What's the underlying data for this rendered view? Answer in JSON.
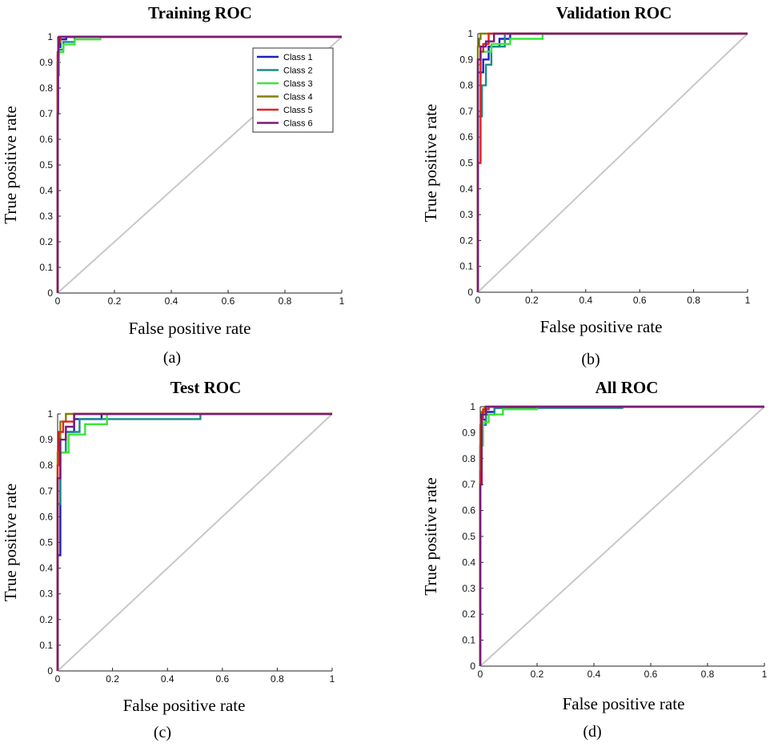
{
  "colors": {
    "class1": "#1f1fbf",
    "class2": "#1b8a8a",
    "class3": "#39e639",
    "class4": "#808000",
    "class5": "#e62020",
    "class6": "#7a1a7a",
    "diagonal": "#c8c8c8"
  },
  "chart_data": [
    {
      "type": "line",
      "panel": "a",
      "title": "Training ROC",
      "xlabel": "False positive rate",
      "ylabel": "True positive rate",
      "caption": "(a)",
      "xlim": [
        0,
        1
      ],
      "ylim": [
        0,
        1
      ],
      "xticks": [
        "0",
        "0.2",
        "0.4",
        "0.6",
        "0.8",
        "1"
      ],
      "yticks": [
        "0",
        "0.1",
        "0.2",
        "0.3",
        "0.4",
        "0.5",
        "0.6",
        "0.7",
        "0.8",
        "0.9",
        "1"
      ],
      "legend": {
        "position": "top-right",
        "entries": [
          "Class 1",
          "Class 2",
          "Class 3",
          "Class 4",
          "Class 5",
          "Class 6"
        ]
      },
      "series": [
        {
          "name": "Class 1",
          "x": [
            0,
            0,
            0.003,
            0.003,
            0.01,
            0.01,
            0.03,
            0.03,
            1
          ],
          "y": [
            0,
            0.9,
            0.9,
            0.96,
            0.96,
            0.99,
            0.99,
            1,
            1
          ]
        },
        {
          "name": "Class 2",
          "x": [
            0,
            0,
            0.005,
            0.005,
            0.02,
            0.02,
            0.06,
            0.06,
            1
          ],
          "y": [
            0,
            0.88,
            0.88,
            0.95,
            0.95,
            0.98,
            0.98,
            1,
            1
          ]
        },
        {
          "name": "Class 3",
          "x": [
            0,
            0,
            0.005,
            0.005,
            0.02,
            0.02,
            0.06,
            0.06,
            0.15,
            0.15,
            1
          ],
          "y": [
            0,
            0.85,
            0.85,
            0.94,
            0.94,
            0.97,
            0.97,
            0.99,
            0.99,
            1,
            1
          ]
        },
        {
          "name": "Class 4",
          "x": [
            0,
            0,
            0.003,
            0.003,
            0.01,
            0.01,
            1
          ],
          "y": [
            0,
            0.93,
            0.93,
            0.98,
            0.98,
            1,
            1
          ]
        },
        {
          "name": "Class 5",
          "x": [
            0,
            0,
            0.003,
            0.003,
            0.008,
            0.008,
            1
          ],
          "y": [
            0,
            0.94,
            0.94,
            0.99,
            0.99,
            1,
            1
          ]
        },
        {
          "name": "Class 6",
          "x": [
            0,
            0,
            0.002,
            0.002,
            0.005,
            0.005,
            1
          ],
          "y": [
            0,
            0.7,
            0.7,
            0.97,
            0.97,
            1,
            1
          ]
        },
        {
          "name": "diagonal",
          "x": [
            0,
            1
          ],
          "y": [
            0,
            1
          ]
        }
      ]
    },
    {
      "type": "line",
      "panel": "b",
      "title": "Validation ROC",
      "xlabel": "False positive rate",
      "ylabel": "True positive rate",
      "caption": "(b)",
      "xlim": [
        0,
        1
      ],
      "ylim": [
        0,
        1
      ],
      "xticks": [
        "0",
        "0.2",
        "0.4",
        "0.6",
        "0.8",
        "1"
      ],
      "yticks": [
        "0",
        "0.1",
        "0.2",
        "0.3",
        "0.4",
        "0.5",
        "0.6",
        "0.7",
        "0.8",
        "0.9",
        "1"
      ],
      "series": [
        {
          "name": "Class 1",
          "x": [
            0,
            0,
            0.02,
            0.02,
            0.04,
            0.04,
            0.08,
            0.08,
            0.12,
            0.12,
            1
          ],
          "y": [
            0,
            0.85,
            0.85,
            0.9,
            0.9,
            0.95,
            0.95,
            0.98,
            0.98,
            1,
            1
          ]
        },
        {
          "name": "Class 2",
          "x": [
            0,
            0,
            0.015,
            0.015,
            0.03,
            0.03,
            0.05,
            0.05,
            0.1,
            0.1,
            1
          ],
          "y": [
            0,
            0.68,
            0.68,
            0.8,
            0.8,
            0.88,
            0.88,
            0.95,
            0.95,
            1,
            1
          ]
        },
        {
          "name": "Class 3",
          "x": [
            0,
            0,
            0.01,
            0.01,
            0.05,
            0.05,
            0.12,
            0.12,
            0.24,
            0.24,
            1
          ],
          "y": [
            0,
            0.88,
            0.88,
            0.93,
            0.93,
            0.96,
            0.96,
            0.98,
            0.98,
            1,
            1
          ]
        },
        {
          "name": "Class 4",
          "x": [
            0,
            0,
            0.005,
            0.005,
            0.01,
            0.01,
            1
          ],
          "y": [
            0,
            0.95,
            0.95,
            0.98,
            0.98,
            1,
            1
          ]
        },
        {
          "name": "Class 5",
          "x": [
            0,
            0,
            0.01,
            0.01,
            0.02,
            0.02,
            0.04,
            0.04,
            1
          ],
          "y": [
            0,
            0.5,
            0.5,
            0.93,
            0.93,
            0.96,
            0.96,
            1,
            1
          ]
        },
        {
          "name": "Class 6",
          "x": [
            0,
            0,
            0.01,
            0.01,
            0.03,
            0.03,
            0.06,
            0.06,
            1
          ],
          "y": [
            0,
            0.9,
            0.9,
            0.95,
            0.95,
            0.97,
            0.97,
            1,
            1
          ]
        },
        {
          "name": "diagonal",
          "x": [
            0,
            1
          ],
          "y": [
            0,
            1
          ]
        }
      ]
    },
    {
      "type": "line",
      "panel": "c",
      "title": "Test ROC",
      "xlabel": "False positive rate",
      "ylabel": "True positive rate",
      "caption": "(c)",
      "xlim": [
        0,
        1
      ],
      "ylim": [
        0,
        1
      ],
      "xticks": [
        "0",
        "0.2",
        "0.4",
        "0.6",
        "0.8",
        "1"
      ],
      "yticks": [
        "0",
        "0.1",
        "0.2",
        "0.3",
        "0.4",
        "0.5",
        "0.6",
        "0.7",
        "0.8",
        "0.9",
        "1"
      ],
      "series": [
        {
          "name": "Class 1",
          "x": [
            0,
            0,
            0.01,
            0.01,
            0.03,
            0.03,
            0.06,
            0.06,
            0.16,
            0.16,
            1
          ],
          "y": [
            0,
            0.45,
            0.45,
            0.85,
            0.85,
            0.93,
            0.93,
            0.98,
            0.98,
            1,
            1
          ]
        },
        {
          "name": "Class 2",
          "x": [
            0,
            0,
            0.01,
            0.01,
            0.03,
            0.03,
            0.08,
            0.08,
            0.52,
            0.52,
            1
          ],
          "y": [
            0,
            0.65,
            0.65,
            0.85,
            0.85,
            0.93,
            0.93,
            0.98,
            0.98,
            1,
            1
          ]
        },
        {
          "name": "Class 3",
          "x": [
            0,
            0,
            0.01,
            0.01,
            0.04,
            0.04,
            0.1,
            0.1,
            0.18,
            0.18,
            1
          ],
          "y": [
            0,
            0.75,
            0.75,
            0.85,
            0.85,
            0.92,
            0.92,
            0.96,
            0.96,
            1,
            1
          ]
        },
        {
          "name": "Class 4",
          "x": [
            0,
            0,
            0.01,
            0.01,
            0.03,
            0.03,
            1
          ],
          "y": [
            0,
            0.85,
            0.85,
            0.97,
            0.97,
            1,
            1
          ]
        },
        {
          "name": "Class 5",
          "x": [
            0,
            0,
            0.005,
            0.005,
            0.02,
            0.02,
            0.06,
            0.06,
            1
          ],
          "y": [
            0,
            0.8,
            0.8,
            0.93,
            0.93,
            0.97,
            0.97,
            1,
            1
          ]
        },
        {
          "name": "Class 6",
          "x": [
            0,
            0,
            0.01,
            0.01,
            0.03,
            0.03,
            0.06,
            0.06,
            1
          ],
          "y": [
            0,
            0.75,
            0.75,
            0.9,
            0.9,
            0.95,
            0.95,
            1,
            1
          ]
        },
        {
          "name": "diagonal",
          "x": [
            0,
            1
          ],
          "y": [
            0,
            1
          ]
        }
      ]
    },
    {
      "type": "line",
      "panel": "d",
      "title": "All ROC",
      "xlabel": "False positive rate",
      "ylabel": "True positive rate",
      "caption": "(d)",
      "xlim": [
        0,
        1
      ],
      "ylim": [
        0,
        1
      ],
      "xticks": [
        "0",
        "0.2",
        "0.4",
        "0.6",
        "0.8",
        "1"
      ],
      "yticks": [
        "0",
        "0.1",
        "0.2",
        "0.3",
        "0.4",
        "0.5",
        "0.6",
        "0.7",
        "0.8",
        "0.9",
        "1"
      ],
      "series": [
        {
          "name": "Class 1",
          "x": [
            0,
            0,
            0.005,
            0.005,
            0.02,
            0.02,
            0.05,
            0.05,
            0.15,
            0.15,
            1
          ],
          "y": [
            0,
            0.85,
            0.85,
            0.95,
            0.95,
            0.98,
            0.98,
            0.995,
            0.995,
            1,
            1
          ]
        },
        {
          "name": "Class 2",
          "x": [
            0,
            0,
            0.005,
            0.005,
            0.02,
            0.02,
            0.05,
            0.05,
            0.5,
            0.5,
            1
          ],
          "y": [
            0,
            0.8,
            0.8,
            0.93,
            0.93,
            0.97,
            0.97,
            0.995,
            0.995,
            1,
            1
          ]
        },
        {
          "name": "Class 3",
          "x": [
            0,
            0,
            0.01,
            0.01,
            0.03,
            0.03,
            0.08,
            0.08,
            0.2,
            0.2,
            1
          ],
          "y": [
            0,
            0.85,
            0.85,
            0.94,
            0.94,
            0.97,
            0.97,
            0.99,
            0.99,
            1,
            1
          ]
        },
        {
          "name": "Class 4",
          "x": [
            0,
            0,
            0.005,
            0.005,
            0.015,
            0.015,
            1
          ],
          "y": [
            0,
            0.93,
            0.93,
            0.98,
            0.98,
            1,
            1
          ]
        },
        {
          "name": "Class 5",
          "x": [
            0,
            0,
            0.003,
            0.003,
            0.01,
            0.01,
            0.03,
            0.03,
            1
          ],
          "y": [
            0,
            0.75,
            0.75,
            0.95,
            0.95,
            0.99,
            0.99,
            1,
            1
          ]
        },
        {
          "name": "Class 6",
          "x": [
            0,
            0,
            0.005,
            0.005,
            0.02,
            0.02,
            1
          ],
          "y": [
            0,
            0.7,
            0.7,
            0.97,
            0.97,
            1,
            1
          ]
        },
        {
          "name": "diagonal",
          "x": [
            0,
            1
          ],
          "y": [
            0,
            1
          ]
        }
      ]
    }
  ]
}
